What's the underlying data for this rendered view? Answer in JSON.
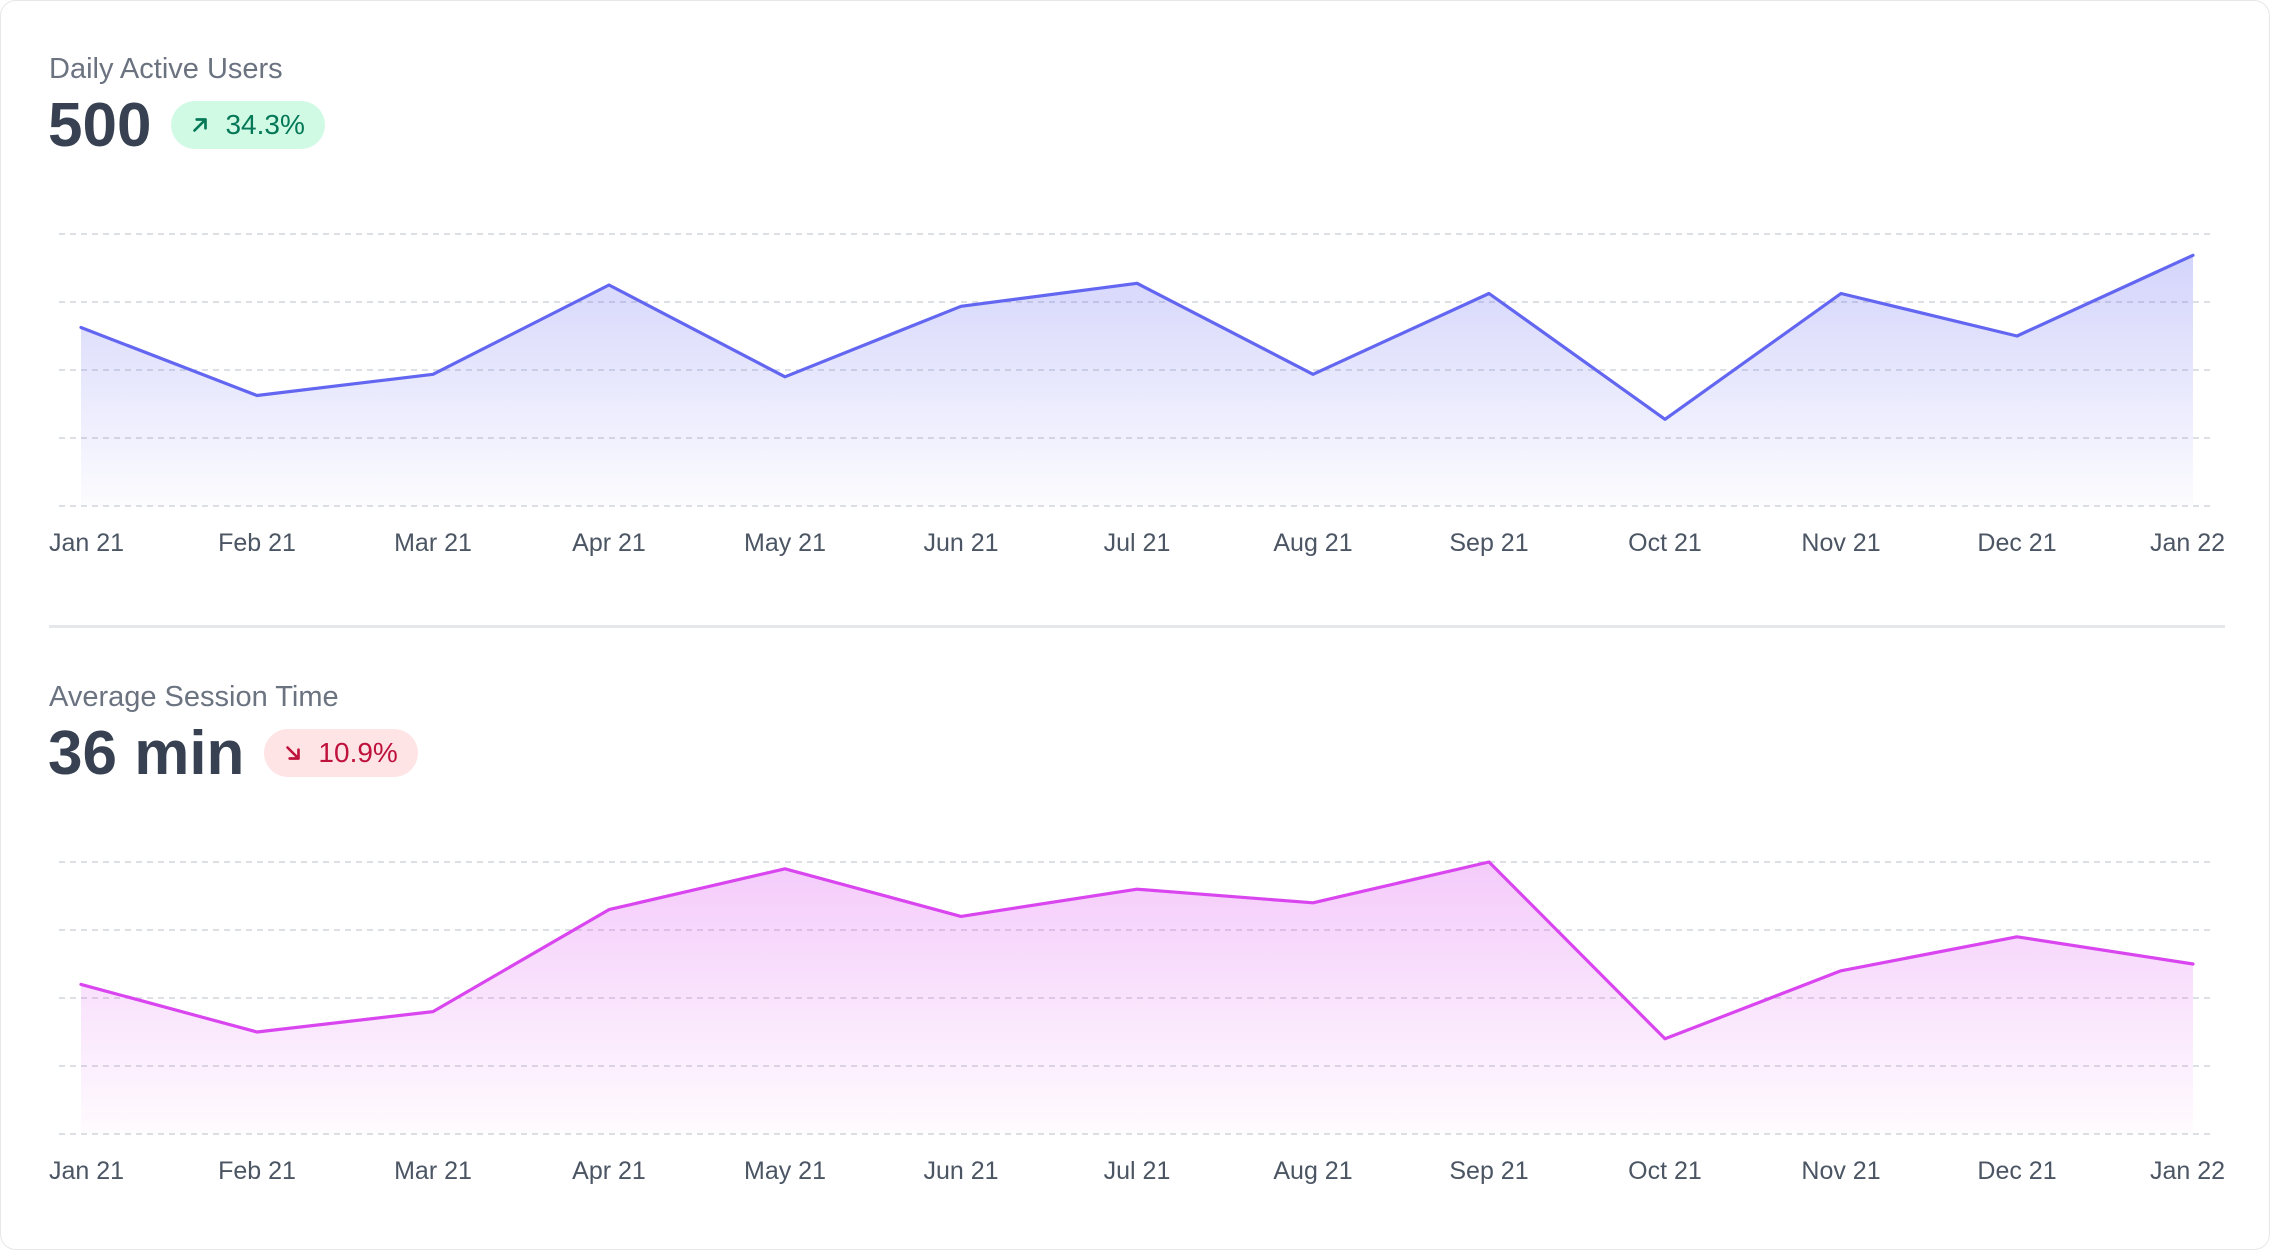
{
  "charts": [
    {
      "metric_label": "Daily Active Users",
      "metric_value": "500",
      "badge": {
        "text": "34.3%",
        "direction": "up",
        "icon": "arrow-up-right-icon",
        "bg": "#d1fae5",
        "fg": "#047857"
      },
      "chart_data": {
        "type": "area",
        "categories": [
          "Jan 21",
          "Feb 21",
          "Mar 21",
          "Apr 21",
          "May 21",
          "Jun 21",
          "Jul 21",
          "Aug 21",
          "Sep 21",
          "Oct 21",
          "Nov 21",
          "Dec 21",
          "Jan 22"
        ],
        "series": [
          {
            "values": [
              410,
              330,
              355,
              460,
              352,
              435,
              462,
              355,
              450,
              302,
              450,
              400,
              495
            ],
            "color": "#6366f1"
          }
        ],
        "ylim": [
          200,
          520
        ],
        "grid": true,
        "legend": "none"
      }
    },
    {
      "metric_label": "Average Session Time",
      "metric_value": "36 min",
      "badge": {
        "text": "10.9%",
        "direction": "down",
        "icon": "arrow-down-right-icon",
        "bg": "#ffe4e6",
        "fg": "#be123c"
      },
      "chart_data": {
        "type": "area",
        "categories": [
          "Jan 21",
          "Feb 21",
          "Mar 21",
          "Apr 21",
          "May 21",
          "Jun 21",
          "Jul 21",
          "Aug 21",
          "Sep 21",
          "Oct 21",
          "Nov 21",
          "Dec 21",
          "Jan 22"
        ],
        "series": [
          {
            "values": [
              32,
              25,
              28,
              43,
              49,
              42,
              46,
              44,
              50,
              24,
              34,
              39,
              35
            ],
            "color": "#d946ef"
          }
        ],
        "ylim": [
          10,
          50
        ],
        "grid": true,
        "legend": "none"
      }
    }
  ]
}
